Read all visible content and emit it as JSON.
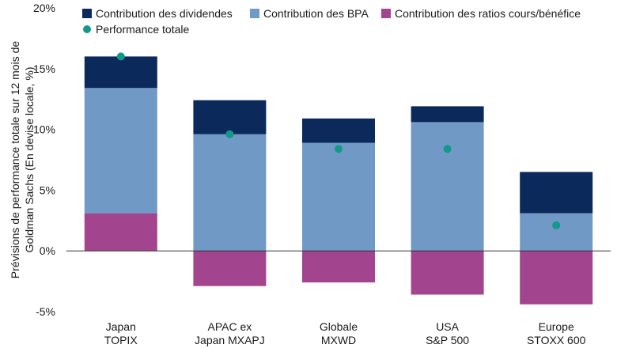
{
  "chart_data": {
    "type": "bar",
    "stacked": true,
    "categories": [
      [
        "Japan",
        "TOPIX"
      ],
      [
        "APAC ex",
        "Japan MXAPJ"
      ],
      [
        "Globale",
        "MXWD"
      ],
      [
        "USA",
        "S&P 500"
      ],
      [
        "Europe",
        "STOXX 600"
      ]
    ],
    "ylabel": [
      "Prévisions de performance totale sur 12 mois de",
      "Goldman Sachs (En devise locale, %)"
    ],
    "ylim": [
      -5,
      20
    ],
    "yticks": [
      -5,
      0,
      5,
      10,
      15,
      20
    ],
    "ytick_labels": [
      "-5%",
      "0%",
      "5%",
      "10%",
      "15%",
      "20%"
    ],
    "grid": false,
    "legend_position": "top",
    "series": [
      {
        "name": "Contribution des dividendes",
        "color": "#0b2a5b",
        "values": [
          2.6,
          2.8,
          2.0,
          1.3,
          3.4
        ]
      },
      {
        "name": "Contribution des BPA",
        "color": "#7199c6",
        "values": [
          10.3,
          9.6,
          8.9,
          10.6,
          3.1
        ]
      },
      {
        "name": "Contribution des ratios cours/bénéfice",
        "color": "#a2448e",
        "values": [
          3.1,
          -2.9,
          -2.6,
          -3.6,
          -4.4
        ]
      }
    ],
    "markers": {
      "name": "Performance totale",
      "color": "#12998a",
      "values": [
        16.0,
        9.6,
        8.4,
        8.4,
        2.1
      ]
    }
  }
}
